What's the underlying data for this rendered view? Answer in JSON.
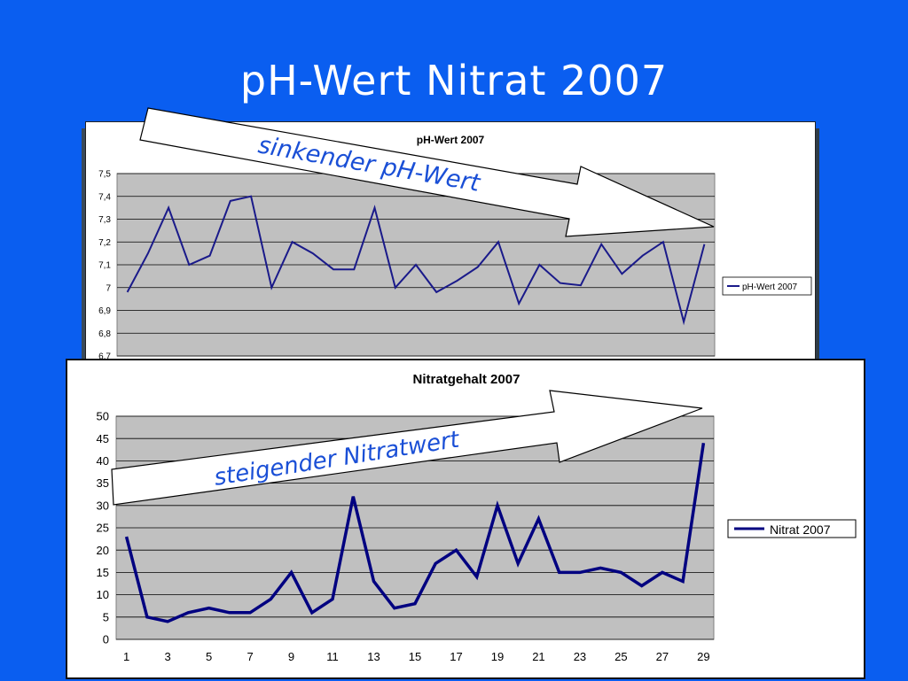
{
  "slide": {
    "title": "pH-Wert  Nitrat  2007",
    "background": "#0a5ef0",
    "annotation_top": "sinkender pH-Wert",
    "annotation_bottom": "steigender Nitratwert",
    "annotation_color": "#1a4fd6"
  },
  "chart_data": [
    {
      "type": "line",
      "title": "pH-Wert 2007",
      "xlabel": "",
      "ylabel": "",
      "ylim": [
        6.7,
        7.5
      ],
      "yticks": [
        "7,5",
        "7,4",
        "7,3",
        "7,2",
        "7,1",
        "7",
        "6,9",
        "6,8",
        "6,7"
      ],
      "ytick_values": [
        7.5,
        7.4,
        7.3,
        7.2,
        7.1,
        7.0,
        6.9,
        6.8,
        6.7
      ],
      "x": [
        1,
        2,
        3,
        4,
        5,
        6,
        7,
        8,
        9,
        10,
        11,
        12,
        13,
        14,
        15,
        16,
        17,
        18,
        19,
        20,
        21,
        22,
        23,
        24,
        25,
        26,
        27,
        28,
        29
      ],
      "series": [
        {
          "name": "pH-Wert 2007",
          "color": "#1a1a8a",
          "values": [
            6.98,
            7.15,
            7.35,
            7.1,
            7.14,
            7.38,
            7.4,
            7.0,
            7.2,
            7.15,
            7.08,
            7.08,
            7.35,
            7.0,
            7.1,
            6.98,
            7.03,
            7.09,
            7.2,
            6.93,
            7.1,
            7.02,
            7.01,
            7.19,
            7.06,
            7.14,
            7.2,
            6.85,
            7.19
          ]
        }
      ],
      "legend": "right",
      "plot_background": "#c0c0c0",
      "grid": true
    },
    {
      "type": "line",
      "title": "Nitratgehalt 2007",
      "xlabel": "",
      "ylabel": "",
      "ylim": [
        0,
        50
      ],
      "yticks": [
        "50",
        "45",
        "40",
        "35",
        "30",
        "25",
        "20",
        "15",
        "10",
        "5",
        "0"
      ],
      "ytick_values": [
        50,
        45,
        40,
        35,
        30,
        25,
        20,
        15,
        10,
        5,
        0
      ],
      "xticks": [
        "1",
        "3",
        "5",
        "7",
        "9",
        "11",
        "13",
        "15",
        "17",
        "19",
        "21",
        "23",
        "25",
        "27",
        "29"
      ],
      "x": [
        1,
        2,
        3,
        4,
        5,
        6,
        7,
        8,
        9,
        10,
        11,
        12,
        13,
        14,
        15,
        16,
        17,
        18,
        19,
        20,
        21,
        22,
        23,
        24,
        25,
        26,
        27,
        28,
        29
      ],
      "series": [
        {
          "name": "Nitrat 2007",
          "color": "#000080",
          "values": [
            23,
            5,
            4,
            6,
            7,
            6,
            6,
            9,
            15,
            6,
            9,
            32,
            13,
            7,
            8,
            17,
            20,
            14,
            30,
            17,
            27,
            15,
            15,
            16,
            15,
            12,
            15,
            13,
            44
          ]
        }
      ],
      "legend": "right",
      "plot_background": "#c0c0c0",
      "grid": true
    }
  ]
}
